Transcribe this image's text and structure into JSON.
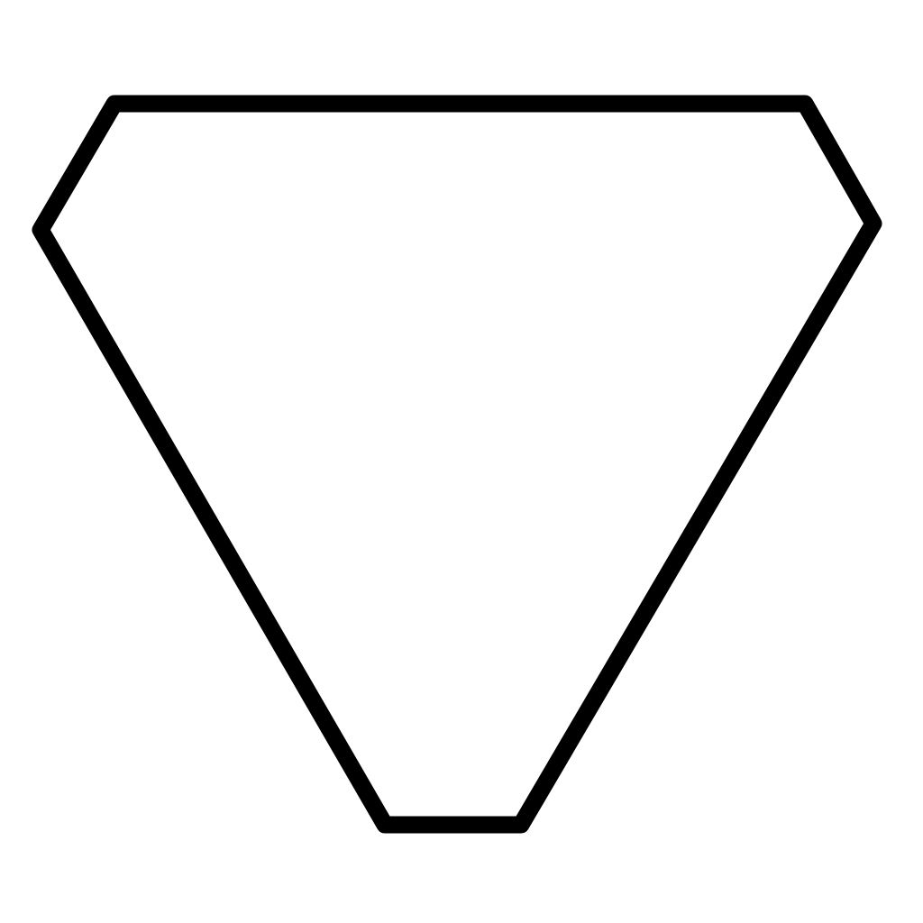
{
  "figure": {
    "shape": "hexagon-outline",
    "stroke_color": "#000000",
    "fill_color": "#ffffff"
  }
}
